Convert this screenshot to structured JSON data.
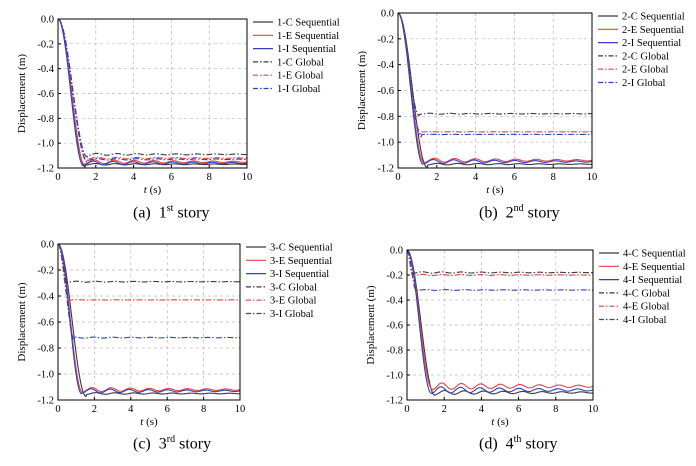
{
  "figure": {
    "captions": [
      {
        "label": "(a)",
        "num": "1",
        "sup": "st",
        "word": "story"
      },
      {
        "label": "(b)",
        "num": "2",
        "sup": "nd",
        "word": "story"
      },
      {
        "label": "(c)",
        "num": "3",
        "sup": "rd",
        "word": "story"
      },
      {
        "label": "(d)",
        "num": "4",
        "sup": "th",
        "word": "story"
      }
    ]
  },
  "chart_data": [
    {
      "type": "line",
      "panel": "a",
      "ylabel": "Displacement (m)",
      "xlabel_t": "t",
      "xlabel_unit": " (s)",
      "xlim": [
        0,
        10
      ],
      "ylim": [
        -1.2,
        0.0
      ],
      "xticks": [
        "0",
        "2",
        "4",
        "6",
        "8",
        "10"
      ],
      "yticks": [
        "0.0",
        "-0.2",
        "-0.4",
        "-0.6",
        "-0.8",
        "-1.0",
        "-1.2"
      ],
      "grid": true,
      "legend_position": "top-right",
      "series": [
        {
          "name": "1-C Sequential",
          "color": "#3a3a3a",
          "dash": "solid",
          "kind": "seq",
          "final": -1.17,
          "amp": 0.03,
          "tmin": 1.45
        },
        {
          "name": "1-E Sequential",
          "color": "#e8433f",
          "dash": "solid",
          "kind": "seq",
          "final": -1.15,
          "amp": 0.04,
          "tmin": 1.4
        },
        {
          "name": "1-I  Sequential",
          "color": "#2f3fc7",
          "dash": "solid",
          "kind": "seq",
          "final": -1.16,
          "amp": 0.04,
          "tmin": 1.35
        },
        {
          "name": "1-C Global",
          "color": "#3a3a3a",
          "dash": "dashdot",
          "kind": "glob",
          "final": -1.09,
          "amp": 0.03,
          "tmin": 1.55
        },
        {
          "name": "1-E Global",
          "color": "#e8433f",
          "dash": "dashdot",
          "kind": "glob",
          "final": -1.12,
          "amp": 0.03,
          "tmin": 1.55
        },
        {
          "name": "1-I  Global",
          "color": "#2f3fc7",
          "dash": "dashdot",
          "kind": "glob",
          "final": -1.13,
          "amp": 0.03,
          "tmin": 1.55
        }
      ]
    },
    {
      "type": "line",
      "panel": "b",
      "ylabel": "Displacement (m)",
      "xlabel_t": "t",
      "xlabel_unit": " (s)",
      "xlim": [
        0,
        10
      ],
      "ylim": [
        -1.2,
        0.0
      ],
      "xticks": [
        "0",
        "2",
        "4",
        "6",
        "8",
        "10"
      ],
      "yticks": [
        "0.0",
        "-0.2",
        "-0.4",
        "-0.6",
        "-0.8",
        "-1.0",
        "-1.2"
      ],
      "grid": true,
      "legend_position": "top-right",
      "series": [
        {
          "name": "2-C Sequential",
          "color": "#3a3a3a",
          "dash": "solid",
          "kind": "seq",
          "final": -1.17,
          "amp": 0.03,
          "tmin": 1.5
        },
        {
          "name": "2-E Sequential",
          "color": "#e8433f",
          "dash": "solid",
          "kind": "seq",
          "final": -1.14,
          "amp": 0.04,
          "tmin": 1.35
        },
        {
          "name": "2-I  Sequential",
          "color": "#2f3fc7",
          "dash": "solid",
          "kind": "seq",
          "final": -1.15,
          "amp": 0.04,
          "tmin": 1.3
        },
        {
          "name": "2-C Global",
          "color": "#3a3a3a",
          "dash": "dashdot",
          "kind": "glob",
          "final": -0.78,
          "amp": 0.02,
          "tmin": 1.1
        },
        {
          "name": "2-E Global",
          "color": "#e8433f",
          "dash": "dashdot",
          "kind": "glob",
          "final": -0.92,
          "amp": 0.02,
          "tmin": 1.2
        },
        {
          "name": "2-I  Global",
          "color": "#2f3fc7",
          "dash": "dashdot",
          "kind": "glob",
          "final": -0.94,
          "amp": 0.02,
          "tmin": 1.2
        }
      ]
    },
    {
      "type": "line",
      "panel": "c",
      "ylabel": "Displacement (m)",
      "xlabel_t": "t",
      "xlabel_unit": " (s)",
      "xlim": [
        0,
        10
      ],
      "ylim": [
        -1.2,
        0.0
      ],
      "xticks": [
        "0",
        "2",
        "4",
        "6",
        "8",
        "10"
      ],
      "yticks": [
        "0.0",
        "-0.2",
        "-0.4",
        "-0.6",
        "-0.8",
        "-1.0",
        "-1.2"
      ],
      "grid": true,
      "legend_position": "top-right",
      "series": [
        {
          "name": "3-C Sequential",
          "color": "#3a3a3a",
          "dash": "solid",
          "kind": "seq",
          "final": -1.15,
          "amp": 0.03,
          "tmin": 1.55
        },
        {
          "name": "3-E Sequential",
          "color": "#e8433f",
          "dash": "solid",
          "kind": "seq",
          "final": -1.12,
          "amp": 0.04,
          "tmin": 1.35
        },
        {
          "name": "3-I  Sequential",
          "color": "#2f3fc7",
          "dash": "solid",
          "kind": "seq",
          "final": -1.13,
          "amp": 0.04,
          "tmin": 1.3
        },
        {
          "name": "3-C Global",
          "color": "#3a3a3a",
          "dash": "dashdot",
          "kind": "glob",
          "final": -0.29,
          "amp": 0.01,
          "tmin": 0.5
        },
        {
          "name": "3-E Global",
          "color": "#e8433f",
          "dash": "dashdot",
          "kind": "glob",
          "final": -0.43,
          "amp": 0.01,
          "tmin": 0.6
        },
        {
          "name": "3-I  Global",
          "color": "#2f3fc7",
          "dash": "dashdot",
          "kind": "glob",
          "final": -0.72,
          "amp": 0.01,
          "tmin": 0.9
        }
      ]
    },
    {
      "type": "line",
      "panel": "d",
      "ylabel": "Displacement (m)",
      "xlabel_t": "t",
      "xlabel_unit": " (s)",
      "xlim": [
        0,
        10
      ],
      "ylim": [
        -1.2,
        0.0
      ],
      "xticks": [
        "0",
        "2",
        "4",
        "6",
        "8",
        "10"
      ],
      "yticks": [
        "0.0",
        "-0.2",
        "-0.4",
        "-0.6",
        "-0.8",
        "-1.0",
        "-1.2"
      ],
      "grid": true,
      "legend_position": "top-right",
      "series": [
        {
          "name": "4-C Sequential",
          "color": "#3a3a3a",
          "dash": "solid",
          "kind": "seq",
          "final": -1.14,
          "amp": 0.04,
          "tmin": 1.5
        },
        {
          "name": "4-E Sequential",
          "color": "#e8433f",
          "dash": "solid",
          "kind": "seq",
          "final": -1.09,
          "amp": 0.05,
          "tmin": 1.35
        },
        {
          "name": "4-I  Sequential",
          "color": "#2f3fc7",
          "dash": "solid",
          "kind": "seq",
          "final": -1.12,
          "amp": 0.05,
          "tmin": 1.3
        },
        {
          "name": "4-C Global",
          "color": "#3a3a3a",
          "dash": "dashdot",
          "kind": "glob",
          "final": -0.18,
          "amp": 0.01,
          "tmin": 0.3
        },
        {
          "name": "4-E Global",
          "color": "#e8433f",
          "dash": "dashdot",
          "kind": "glob",
          "final": -0.2,
          "amp": 0.01,
          "tmin": 0.3
        },
        {
          "name": "4-I  Global",
          "color": "#2f3fc7",
          "dash": "dashdot",
          "kind": "glob",
          "final": -0.32,
          "amp": 0.01,
          "tmin": 0.5
        }
      ]
    }
  ]
}
